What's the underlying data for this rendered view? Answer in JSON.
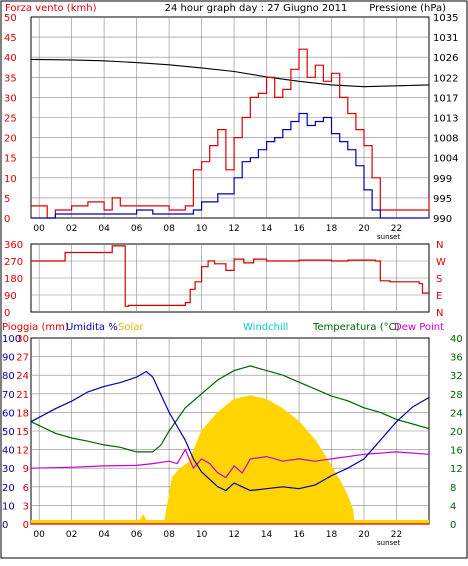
{
  "colors": {
    "wind": "#dd0000",
    "gust": "#0000aa",
    "pressure": "#000000",
    "direction": "#cc0000",
    "rain": "#dd0000",
    "humidity": "#0000aa",
    "solar": "#ffd400",
    "windchill": "#00cccc",
    "temperature": "#006400",
    "dewpoint": "#cc00cc",
    "grid": "#888888",
    "text": "#000000"
  },
  "chart_data": [
    {
      "type": "line",
      "title": "24 hour graph day : 27 Giugno 2011",
      "ylabel": "Forza vento (kmh)",
      "y2label": "Pressione (hPa)",
      "x_ticks": [
        "00",
        "02",
        "04",
        "06",
        "08",
        "10",
        "12",
        "14",
        "16",
        "18",
        "20",
        "22"
      ],
      "x_marker": "sunset",
      "xlim": [
        -0.5,
        24
      ],
      "ylim": [
        0,
        50
      ],
      "y_ticks": [
        "0",
        "5",
        "10",
        "15",
        "20",
        "25",
        "30",
        "35",
        "40",
        "45",
        "50"
      ],
      "y2lim": [
        990,
        1035
      ],
      "y2_ticks": [
        "990",
        "995",
        "999",
        "1004",
        "1008",
        "1013",
        "1017",
        "1022",
        "1026",
        "1031",
        "1035"
      ],
      "grid": true,
      "series": [
        {
          "name": "Forza vento",
          "axis": "y",
          "step": true,
          "x": [
            -0.5,
            0.5,
            1,
            2,
            3,
            4,
            4.5,
            5,
            6,
            7,
            8,
            9,
            9.5,
            10,
            10.5,
            11,
            11.5,
            12,
            12.5,
            13,
            13.5,
            14,
            14.5,
            15,
            15.5,
            16,
            16.5,
            17,
            17.5,
            18,
            18.5,
            19,
            19.5,
            20,
            20.5,
            21,
            22,
            23,
            24
          ],
          "values": [
            3,
            0,
            2,
            3,
            4,
            2,
            5,
            3,
            3,
            3,
            2,
            3,
            12,
            14,
            18,
            22,
            12,
            20,
            25,
            30,
            31,
            35,
            30,
            32,
            37,
            42,
            35,
            38,
            34,
            36,
            30,
            26,
            22,
            18,
            10,
            2,
            2,
            2,
            5
          ]
        },
        {
          "name": "Raffica",
          "axis": "y",
          "step": true,
          "x": [
            -0.5,
            1,
            3,
            5,
            6,
            7,
            8,
            9,
            9.5,
            10,
            11,
            11.5,
            12,
            12.5,
            13,
            13.5,
            14,
            14.5,
            15,
            15.5,
            16,
            16.5,
            17,
            17.5,
            18,
            18.5,
            19,
            19.5,
            20,
            20.5,
            21,
            22,
            24
          ],
          "values": [
            0,
            1,
            1,
            1,
            2,
            1,
            1,
            1,
            2,
            4,
            6,
            6,
            10,
            14,
            15,
            17,
            19,
            20,
            22,
            24,
            26,
            23,
            24,
            25,
            21,
            19,
            17,
            13,
            7,
            2,
            0,
            0,
            0
          ]
        },
        {
          "name": "Pressione",
          "axis": "y2",
          "x": [
            -0.5,
            2,
            4,
            6,
            8,
            10,
            12,
            14,
            16,
            18,
            20,
            22,
            24
          ],
          "values": [
            1025.5,
            1025.4,
            1025.2,
            1024.8,
            1024.3,
            1023.6,
            1022.8,
            1021.6,
            1020.6,
            1019.8,
            1019.4,
            1019.6,
            1019.8
          ]
        }
      ]
    },
    {
      "type": "line",
      "title": "",
      "ylim": [
        0,
        360
      ],
      "y_ticks": [
        "0",
        "90",
        "180",
        "270",
        "360"
      ],
      "y2_ticks": [
        "N",
        "W",
        "S",
        "E",
        "N"
      ],
      "xlim": [
        -0.5,
        24
      ],
      "grid": true,
      "series": [
        {
          "name": "Direzione vento",
          "step": true,
          "x": [
            -0.5,
            1.6,
            4.5,
            5.3,
            5.5,
            9,
            9.3,
            9.6,
            10,
            10.4,
            10.8,
            11.5,
            12,
            12.6,
            13.2,
            14,
            16,
            18,
            19,
            20.7,
            21,
            21.6,
            23.4,
            23.6,
            24
          ],
          "values": [
            270,
            315,
            350,
            30,
            35,
            50,
            120,
            160,
            240,
            270,
            255,
            220,
            280,
            260,
            280,
            270,
            275,
            270,
            275,
            270,
            165,
            160,
            150,
            100,
            100
          ]
        }
      ]
    },
    {
      "type": "line",
      "legend": [
        "Pioggia (mm)",
        "Umidita %",
        "Solar",
        "Windchill",
        "Temperatura (°C)",
        "Dew Point"
      ],
      "xlim": [
        -0.5,
        24
      ],
      "x_ticks": [
        "00",
        "02",
        "04",
        "06",
        "08",
        "10",
        "12",
        "14",
        "16",
        "18",
        "20",
        "22"
      ],
      "x_marker": "sunset",
      "left_axis_ticks": [
        "0",
        "10",
        "20",
        "30",
        "40",
        "50",
        "60",
        "70",
        "80",
        "90",
        "100"
      ],
      "rain_ticks": [
        "0",
        "3",
        "6",
        "9",
        "12",
        "15",
        "18",
        "21",
        "24",
        "27",
        "30"
      ],
      "right_axis_ticks": [
        "0",
        "4",
        "8",
        "12",
        "16",
        "20",
        "24",
        "28",
        "32",
        "36",
        "40"
      ],
      "grid": true,
      "series": [
        {
          "name": "Umidita %",
          "axis": "humidity",
          "ylim": [
            0,
            100
          ],
          "x": [
            -0.5,
            1,
            2,
            3,
            4,
            5,
            6,
            6.6,
            7,
            8,
            9,
            9.5,
            10,
            11,
            11.5,
            12,
            13,
            14,
            15,
            16,
            17,
            18,
            19,
            20,
            21,
            22,
            23,
            24
          ],
          "values": [
            55,
            62,
            66,
            71,
            74,
            76,
            79,
            82,
            79,
            60,
            45,
            35,
            28,
            20,
            18,
            22,
            18,
            19,
            20,
            19,
            21,
            26,
            30,
            35,
            45,
            55,
            63,
            68
          ]
        },
        {
          "name": "Solar",
          "axis": "humidity",
          "ylim": [
            0,
            100
          ],
          "x": [
            -0.5,
            6.1,
            6.4,
            6.7,
            7.2,
            7.7,
            8.2,
            8.7,
            9.2,
            10,
            11,
            12,
            13,
            14,
            15,
            16,
            17,
            18,
            18.6,
            19,
            19.3,
            19.4,
            24
          ],
          "values": [
            0,
            0,
            5,
            0,
            0,
            0,
            25,
            30,
            33,
            50,
            60,
            67,
            69,
            67,
            62,
            55,
            45,
            31,
            22,
            15,
            8,
            0,
            0
          ]
        },
        {
          "name": "Temperatura (°C)",
          "axis": "temp",
          "ylim": [
            0,
            40
          ],
          "x": [
            -0.5,
            1,
            2,
            3,
            4,
            5,
            6,
            7,
            7.5,
            8,
            9,
            10,
            11,
            12,
            13,
            14,
            15,
            16,
            17,
            18,
            19,
            20,
            21,
            22,
            23,
            24
          ],
          "values": [
            22,
            19.5,
            18.5,
            17.8,
            17,
            16.5,
            15.5,
            15.5,
            17,
            20,
            25,
            28,
            31,
            33,
            34,
            33,
            32,
            30.5,
            29,
            27.5,
            26.5,
            25,
            24,
            22.5,
            21.5,
            20.5
          ]
        },
        {
          "name": "Dew Point",
          "axis": "temp",
          "ylim": [
            0,
            40
          ],
          "x": [
            -0.5,
            2,
            4,
            6,
            7,
            8,
            8.5,
            9,
            9.5,
            10,
            10.5,
            11,
            11.5,
            12,
            12.5,
            13,
            14,
            15,
            16,
            17,
            18,
            20,
            22,
            24
          ],
          "values": [
            12,
            12.2,
            12.5,
            12.6,
            13,
            13.5,
            13,
            16,
            12,
            14,
            13,
            11,
            10,
            12.5,
            11,
            14,
            14.5,
            13.5,
            14,
            13.5,
            14,
            15,
            15.5,
            15
          ]
        },
        {
          "name": "Pioggia (mm)",
          "axis": "rain",
          "ylim": [
            0,
            30
          ],
          "x": [
            -0.5,
            24
          ],
          "values": [
            0,
            0
          ]
        }
      ]
    }
  ]
}
